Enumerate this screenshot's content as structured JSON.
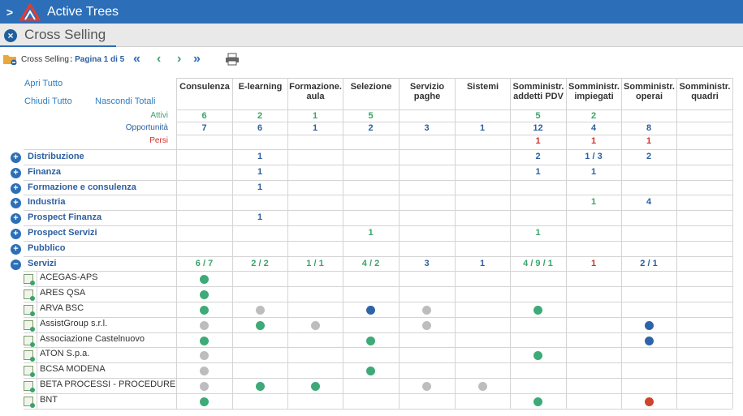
{
  "app": {
    "title": "Active Trees",
    "page_title": "Cross Selling"
  },
  "toolbar": {
    "label": "Cross Selling",
    "pager": ": Pagina 1 di 5"
  },
  "links": {
    "apri": "Apri Tutto",
    "chiudi": "Chiudi Tutto",
    "nascondi": "Nascondi Totali"
  },
  "status_labels": {
    "attivi": "Attivi",
    "opportunita": "Opportunità",
    "persi": "Persi"
  },
  "columns": [
    "Consulenza",
    "E-learning",
    "Formazione. aula",
    "Selezione",
    "Servizio paghe",
    "Sistemi",
    "Somministr. addetti PDV",
    "Somministr. impiegati",
    "Somministr. operai",
    "Somministr. quadri"
  ],
  "totals": {
    "attivi": [
      "6",
      "2",
      "1",
      "5",
      "",
      "",
      "5",
      "2",
      "",
      ""
    ],
    "opportunita": [
      "7",
      "6",
      "1",
      "2",
      "3",
      "1",
      "12",
      "4",
      "8",
      ""
    ],
    "persi": [
      "",
      "",
      "",
      "",
      "",
      "",
      "1",
      "1",
      "1",
      ""
    ]
  },
  "groups": [
    {
      "label": "Distribuzione",
      "vals": [
        "",
        "1",
        "",
        "",
        "",
        "",
        "2",
        "1 / 3",
        "2",
        ""
      ]
    },
    {
      "label": "Finanza",
      "vals": [
        "",
        "1",
        "",
        "",
        "",
        "",
        "1",
        "1",
        "",
        ""
      ]
    },
    {
      "label": "Formazione e consulenza",
      "vals": [
        "",
        "1",
        "",
        "",
        "",
        "",
        "",
        "",
        "",
        ""
      ]
    },
    {
      "label": "Industria",
      "vals": [
        "",
        "",
        "",
        "",
        "",
        "",
        "",
        "1",
        "4",
        ""
      ]
    },
    {
      "label": "Prospect Finanza",
      "vals": [
        "",
        "1",
        "",
        "",
        "",
        "",
        "",
        "",
        "",
        ""
      ]
    },
    {
      "label": "Prospect Servizi",
      "vals": [
        "",
        "",
        "",
        "1",
        "",
        "",
        "1",
        "",
        "",
        ""
      ]
    },
    {
      "label": "Pubblico",
      "vals": [
        "",
        "",
        "",
        "",
        "",
        "",
        "",
        "",
        "",
        ""
      ]
    }
  ],
  "servizi": {
    "label": "Servizi",
    "vals": [
      "6 / 7",
      "2 / 2",
      "1 / 1",
      "4 / 2",
      "3",
      "1",
      "4 / 9 / 1",
      "1",
      "2 / 1",
      ""
    ]
  },
  "clients": [
    {
      "name": "ACEGAS-APS",
      "dots": [
        "g",
        "",
        "",
        "",
        "",
        "",
        "",
        "",
        "",
        ""
      ]
    },
    {
      "name": "ARES QSA",
      "dots": [
        "g",
        "",
        "",
        "",
        "",
        "",
        "",
        "",
        "",
        ""
      ]
    },
    {
      "name": "ARVA BSC",
      "dots": [
        "g",
        "s",
        "",
        "b",
        "s",
        "",
        "g",
        "",
        "",
        ""
      ]
    },
    {
      "name": "AssistGroup s.r.l.",
      "dots": [
        "s",
        "g",
        "s",
        "",
        "s",
        "",
        "",
        "",
        "b",
        ""
      ]
    },
    {
      "name": "Associazione Castelnuovo",
      "dots": [
        "g",
        "",
        "",
        "g",
        "",
        "",
        "",
        "",
        "b",
        ""
      ]
    },
    {
      "name": "ATON S.p.a.",
      "dots": [
        "s",
        "",
        "",
        "",
        "",
        "",
        "g",
        "",
        "",
        ""
      ]
    },
    {
      "name": "BCSA MODENA",
      "dots": [
        "s",
        "",
        "",
        "g",
        "",
        "",
        "",
        "",
        "",
        ""
      ]
    },
    {
      "name": "BETA PROCESSI - PROCEDURE",
      "dots": [
        "s",
        "g",
        "g",
        "",
        "s",
        "s",
        "",
        "",
        "",
        ""
      ]
    },
    {
      "name": "BNT",
      "dots": [
        "g",
        "",
        "",
        "",
        "",
        "",
        "g",
        "",
        "r",
        ""
      ]
    }
  ],
  "colors": {
    "g": "#3daa78",
    "s": "#bdbdbd",
    "b": "#2d64a8",
    "r": "#d0432b",
    "accent": "#2c6fb8"
  }
}
